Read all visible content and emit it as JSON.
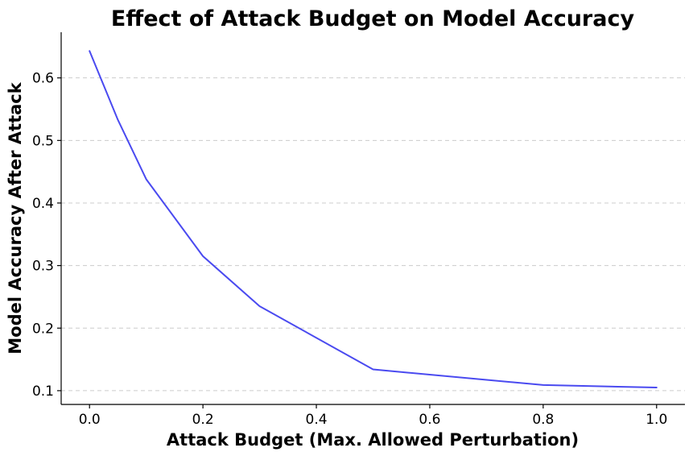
{
  "chart_data": {
    "type": "line",
    "title": "Effect of Attack Budget on Model Accuracy",
    "xlabel": "Attack Budget (Max. Allowed Perturbation)",
    "ylabel": "Model Accuracy After Attack",
    "xlim": [
      -0.05,
      1.05
    ],
    "ylim": [
      0.078,
      0.673
    ],
    "xticks": [
      0.0,
      0.2,
      0.4,
      0.6,
      0.8,
      1.0
    ],
    "xtick_labels": [
      "0.0",
      "0.2",
      "0.4",
      "0.6",
      "0.8",
      "1.0"
    ],
    "yticks": [
      0.1,
      0.2,
      0.3,
      0.4,
      0.5,
      0.6
    ],
    "ytick_labels": [
      "0.1",
      "0.2",
      "0.3",
      "0.4",
      "0.5",
      "0.6"
    ],
    "grid": {
      "y": true,
      "x": false,
      "style": "dashed"
    },
    "series": [
      {
        "color": "#4a4af0",
        "x": [
          0.0,
          0.05,
          0.1,
          0.2,
          0.3,
          0.5,
          0.8,
          1.0
        ],
        "y": [
          0.643,
          0.533,
          0.438,
          0.315,
          0.235,
          0.134,
          0.109,
          0.105
        ]
      }
    ]
  }
}
